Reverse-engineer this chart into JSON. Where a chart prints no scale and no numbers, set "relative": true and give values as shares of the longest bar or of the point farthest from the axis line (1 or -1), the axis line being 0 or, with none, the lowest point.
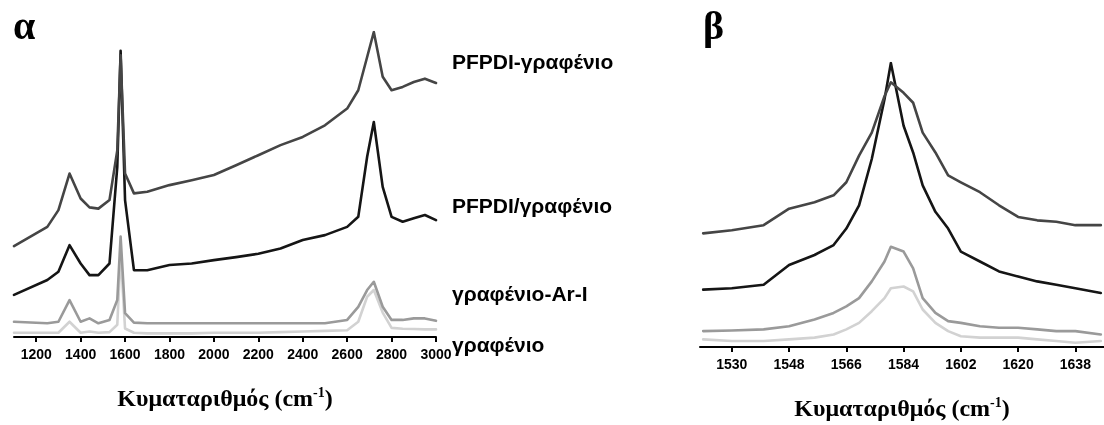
{
  "chart_data": [
    {
      "type": "line",
      "title": "α",
      "xlabel": "Κυματαριθμός (cm$^{-1}$)",
      "relative": true,
      "marker": "none",
      "xlim": [
        1100,
        3000
      ],
      "xticks": [
        1200,
        1400,
        1600,
        1800,
        2000,
        2200,
        2400,
        2600,
        2800,
        3000
      ],
      "x": [
        1100,
        1250,
        1300,
        1350,
        1400,
        1440,
        1480,
        1530,
        1565,
        1580,
        1600,
        1640,
        1700,
        1800,
        1900,
        2000,
        2100,
        2200,
        2300,
        2400,
        2500,
        2600,
        2650,
        2690,
        2720,
        2760,
        2800,
        2850,
        2900,
        2950,
        3000
      ],
      "series": [
        {
          "name": "PFPDI-γραφένιο",
          "color": "#454545",
          "values": [
            0.298,
            0.361,
            0.416,
            0.536,
            0.454,
            0.425,
            0.421,
            0.449,
            0.612,
            0.924,
            0.536,
            0.471,
            0.476,
            0.498,
            0.514,
            0.531,
            0.563,
            0.596,
            0.629,
            0.656,
            0.694,
            0.749,
            0.809,
            0.918,
            1,
            0.853,
            0.809,
            0.82,
            0.836,
            0.847,
            0.833
          ]
        },
        {
          "name": "PFPDI/γραφένιο",
          "color": "#151515",
          "values": [
            0.138,
            0.187,
            0.214,
            0.301,
            0.241,
            0.203,
            0.203,
            0.241,
            0.558,
            0.938,
            0.449,
            0.219,
            0.219,
            0.236,
            0.241,
            0.252,
            0.262,
            0.273,
            0.29,
            0.318,
            0.334,
            0.361,
            0.394,
            0.591,
            0.705,
            0.492,
            0.394,
            0.378,
            0.389,
            0.4,
            0.383
          ]
        },
        {
          "name": "γραφένιο-Ar-I",
          "color": "#9a9a9a",
          "values": [
            0.05,
            0.045,
            0.05,
            0.121,
            0.05,
            0.061,
            0.045,
            0.056,
            0.121,
            0.329,
            0.078,
            0.047,
            0.045,
            0.045,
            0.045,
            0.045,
            0.045,
            0.045,
            0.045,
            0.045,
            0.045,
            0.056,
            0.099,
            0.154,
            0.181,
            0.099,
            0.056,
            0.056,
            0.061,
            0.061,
            0.053
          ]
        },
        {
          "name": "γραφένιο",
          "color": "#d2d2d2",
          "values": [
            0.014,
            0.014,
            0.014,
            0.05,
            0.014,
            0.018,
            0.014,
            0.016,
            0.04,
            0.274,
            0.028,
            0.014,
            0.012,
            0.012,
            0.012,
            0.014,
            0.014,
            0.014,
            0.016,
            0.018,
            0.02,
            0.022,
            0.05,
            0.132,
            0.154,
            0.08,
            0.03,
            0.027,
            0.026,
            0.025,
            0.025
          ]
        }
      ]
    },
    {
      "type": "line",
      "title": "β",
      "xlabel": "Κυματαριθμός (cm$^{-1}$)",
      "relative": true,
      "marker": "none",
      "xlim": [
        1520,
        1647
      ],
      "xticks": [
        1530,
        1548,
        1566,
        1584,
        1602,
        1620,
        1638
      ],
      "x": [
        1521,
        1530,
        1540,
        1548,
        1556,
        1562,
        1566,
        1570,
        1574,
        1578,
        1580,
        1584,
        1587,
        1590,
        1594,
        1598,
        1602,
        1608,
        1614,
        1620,
        1626,
        1632,
        1638,
        1646
      ],
      "series": [
        {
          "color": "#454545",
          "values": [
            0.4,
            0.411,
            0.429,
            0.487,
            0.51,
            0.534,
            0.58,
            0.674,
            0.755,
            0.883,
            0.932,
            0.895,
            0.86,
            0.755,
            0.685,
            0.604,
            0.58,
            0.545,
            0.499,
            0.458,
            0.446,
            0.441,
            0.429,
            0.429
          ]
        },
        {
          "color": "#151515",
          "values": [
            0.202,
            0.207,
            0.219,
            0.289,
            0.324,
            0.359,
            0.417,
            0.499,
            0.662,
            0.872,
            1,
            0.779,
            0.685,
            0.569,
            0.476,
            0.417,
            0.336,
            0.301,
            0.266,
            0.248,
            0.231,
            0.219,
            0.207,
            0.19
          ]
        },
        {
          "color": "#9a9a9a",
          "values": [
            0.056,
            0.058,
            0.062,
            0.073,
            0.097,
            0.12,
            0.143,
            0.172,
            0.231,
            0.301,
            0.353,
            0.336,
            0.277,
            0.172,
            0.12,
            0.091,
            0.085,
            0.073,
            0.068,
            0.068,
            0.062,
            0.056,
            0.056,
            0.044
          ]
        },
        {
          "color": "#d2d2d2",
          "values": [
            0.027,
            0.021,
            0.021,
            0.027,
            0.033,
            0.044,
            0.062,
            0.085,
            0.126,
            0.172,
            0.207,
            0.213,
            0.196,
            0.132,
            0.085,
            0.056,
            0.038,
            0.033,
            0.033,
            0.033,
            0.027,
            0.021,
            0.015,
            0.021
          ]
        }
      ]
    }
  ]
}
